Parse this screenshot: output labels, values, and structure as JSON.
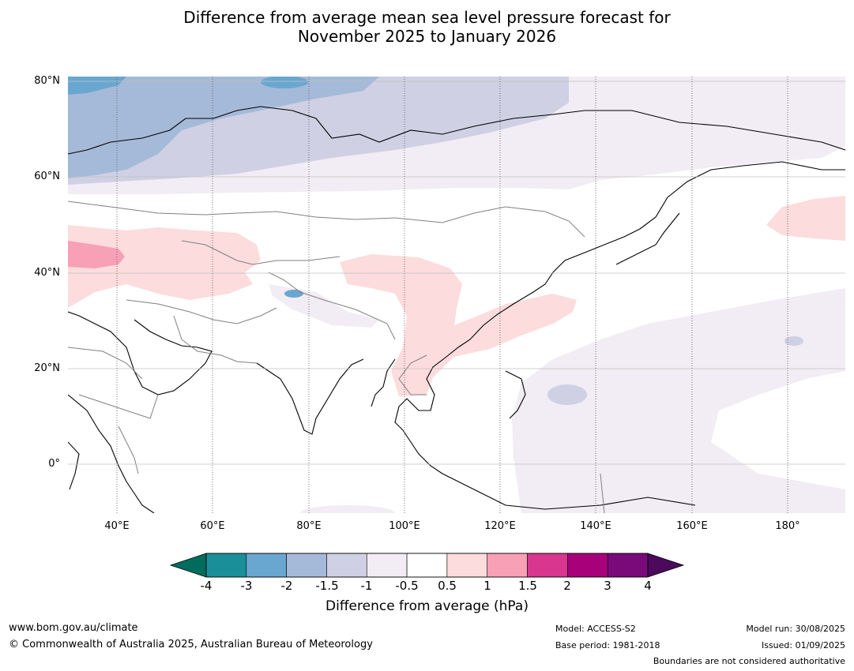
{
  "title": {
    "line1": "Difference from average mean sea level pressure forecast for",
    "line2": "November 2025 to January 2026"
  },
  "map": {
    "latitude_labels": [
      "80°N",
      "60°N",
      "40°N",
      "20°N",
      "0°"
    ],
    "longitude_labels": [
      "40°E",
      "60°E",
      "80°E",
      "100°E",
      "120°E",
      "140°E",
      "160°E",
      "180°"
    ],
    "colors": {
      "ocean_neutral": "#ffffff",
      "pos_0_5_1": "#fcdcdc",
      "pos_1_1_5": "#f7a0b6",
      "neg_0_5_1": "#f2ecf4",
      "neg_1_1_5": "#cfd0e4",
      "neg_1_5_2": "#a5bad8",
      "neg_2_3": "#6aa7d0",
      "coastline": "#000000",
      "borders": "#808080",
      "gridlines": "#c0c0c0"
    }
  },
  "colorbar": {
    "tick_labels": [
      "-4",
      "-3",
      "-2",
      "-1.5",
      "-1",
      "-0.5",
      "0.5",
      "1",
      "1.5",
      "2",
      "3",
      "4"
    ],
    "segment_colors": [
      "#1a8f9a",
      "#6aa7d0",
      "#a5bad8",
      "#cfd0e4",
      "#f2ecf4",
      "#ffffff",
      "#fcdcdc",
      "#f7a0b6",
      "#d8368f",
      "#a8007a",
      "#7a0a7a"
    ],
    "low_extend_color": "#006c5e",
    "high_extend_color": "#4b0a5c",
    "title": "Difference from average (hPa)"
  },
  "footer": {
    "website": "www.bom.gov.au/climate",
    "copyright": "© Commonwealth of Australia 2025, Australian Bureau of Meteorology",
    "model": "Model: ACCESS-S2",
    "base_period": "Base period: 1981-2018",
    "model_run": "Model run: 30/08/2025",
    "issued": "Issued: 01/09/2025",
    "disclaimer": "Boundaries are not considered authoritative"
  }
}
